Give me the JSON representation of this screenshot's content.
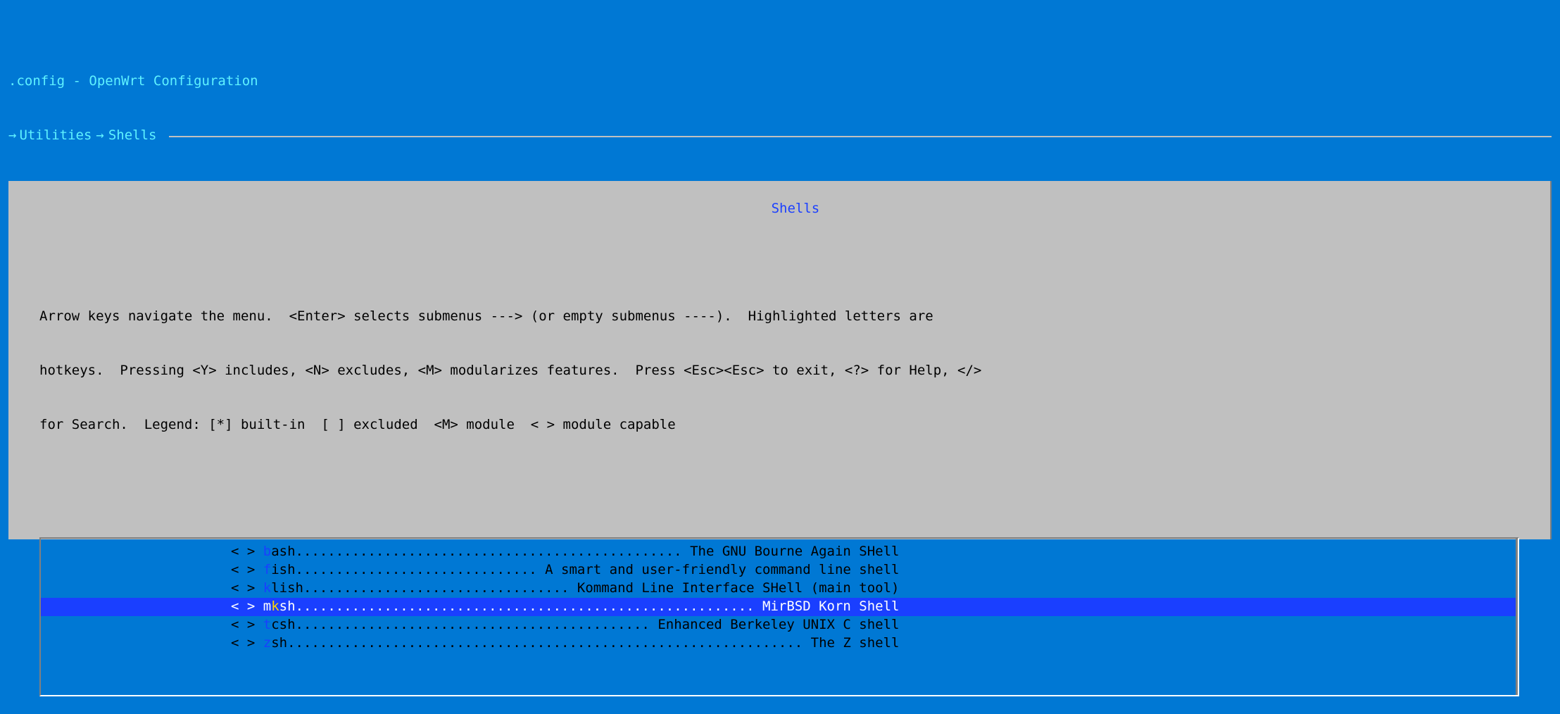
{
  "colors": {
    "window_bg": "#0078d4",
    "header_text": "#5ff2ff",
    "panel_bg": "#c0c0c0",
    "panel_shadow": "#808080",
    "text": "#000000",
    "section_title": "#1a3fff",
    "hotkey": "#1a3fff",
    "selected_bg": "#1a3fff",
    "selected_fg": "#ffffff",
    "selected_hotkey": "#ffd800"
  },
  "title": ".config - OpenWrt Configuration",
  "breadcrumb": {
    "arrow": "→",
    "items": [
      "Utilities",
      "Shells"
    ],
    "sep": "→"
  },
  "section_title": "Shells",
  "help_lines": [
    "Arrow keys navigate the menu.  <Enter> selects submenus ---> (or empty submenus ----).  Highlighted letters are",
    "hotkeys.  Pressing <Y> includes, <N> excludes, <M> modularizes features.  Press <Esc><Esc> to exit, <?> for Help, </>",
    "for Search.  Legend: [*] built-in  [ ] excluded  <M> module  < > module capable"
  ],
  "menu": {
    "dot_width": 78,
    "items": [
      {
        "state": "< >",
        "pre": "",
        "hot": "b",
        "post": "ash",
        "desc": "The GNU Bourne Again SHell",
        "selected": false
      },
      {
        "state": "< >",
        "pre": "",
        "hot": "f",
        "post": "ish",
        "desc": "A smart and user-friendly command line shell",
        "selected": false
      },
      {
        "state": "< >",
        "pre": "",
        "hot": "k",
        "post": "lish",
        "desc": "Kommand Line Interface SHell (main tool)",
        "selected": false
      },
      {
        "state": "< >",
        "pre": "m",
        "hot": "k",
        "post": "sh",
        "desc": "MirBSD Korn Shell",
        "selected": true
      },
      {
        "state": "< >",
        "pre": "",
        "hot": "t",
        "post": "csh",
        "desc": "Enhanced Berkeley UNIX C shell",
        "selected": false
      },
      {
        "state": "< >",
        "pre": "",
        "hot": "z",
        "post": "sh",
        "desc": "The Z shell",
        "selected": false
      }
    ]
  }
}
